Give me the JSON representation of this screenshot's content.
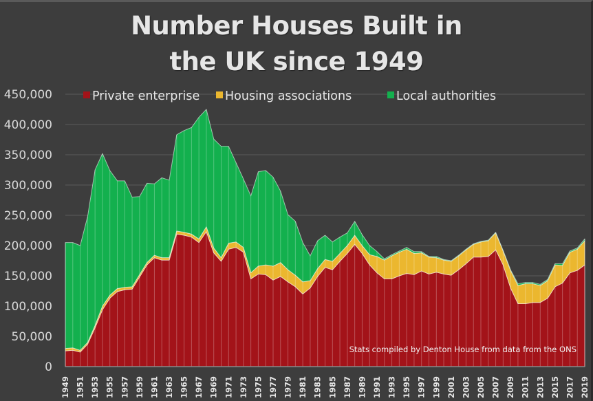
{
  "chart_data": {
    "type": "area",
    "stacked": true,
    "title": "Number Houses Built in the UK since 1949",
    "title_lines": [
      "Number Houses Built in",
      "the UK since 1949"
    ],
    "xlabel": "",
    "ylabel": "",
    "ylim": [
      0,
      450000
    ],
    "yticks": [
      0,
      50000,
      100000,
      150000,
      200000,
      250000,
      300000,
      350000,
      400000,
      450000
    ],
    "ytick_labels": [
      "0",
      "50,000",
      "100,000",
      "150,000",
      "200,000",
      "250,000",
      "300,000",
      "350,000",
      "400,000",
      "450,000"
    ],
    "grid": true,
    "legend_position": "top",
    "annotation": "Stats compiled by Denton House from data from the ONS",
    "x": [
      1949,
      1950,
      1951,
      1952,
      1953,
      1954,
      1955,
      1956,
      1957,
      1958,
      1959,
      1960,
      1961,
      1962,
      1963,
      1964,
      1965,
      1966,
      1967,
      1968,
      1969,
      1970,
      1971,
      1972,
      1973,
      1974,
      1975,
      1976,
      1977,
      1978,
      1979,
      1980,
      1981,
      1982,
      1983,
      1984,
      1985,
      1986,
      1987,
      1988,
      1989,
      1990,
      1991,
      1992,
      1993,
      1994,
      1995,
      1996,
      1997,
      1998,
      1999,
      2000,
      2001,
      2002,
      2003,
      2004,
      2005,
      2006,
      2007,
      2008,
      2009,
      2010,
      2011,
      2012,
      2013,
      2014,
      2015,
      2016,
      2017,
      2018,
      2019
    ],
    "xtick_labels": [
      "1949",
      "1951",
      "1953",
      "1955",
      "1957",
      "1959",
      "1961",
      "1963",
      "1965",
      "1967",
      "1969",
      "1971",
      "1973",
      "1975",
      "1977",
      "1979",
      "1981",
      "1983",
      "1985",
      "1987",
      "1989",
      "1991",
      "1993",
      "1995",
      "1997",
      "1999",
      "2001",
      "2003",
      "2005",
      "2007",
      "2009",
      "2011",
      "2013",
      "2015",
      "2017",
      "2019"
    ],
    "series": [
      {
        "name": "Private enterprise",
        "color": "#a31319",
        "values": [
          26000,
          27000,
          24000,
          37000,
          64000,
          94000,
          113000,
          124000,
          127000,
          128000,
          148000,
          168000,
          180000,
          176000,
          176000,
          219000,
          217000,
          214000,
          205000,
          223000,
          188000,
          174000,
          194000,
          197000,
          189000,
          145000,
          153000,
          152000,
          143000,
          149000,
          140000,
          132000,
          120000,
          130000,
          149000,
          164000,
          160000,
          174000,
          187000,
          202000,
          187000,
          168000,
          155000,
          145000,
          145000,
          150000,
          154000,
          152000,
          158000,
          153000,
          156000,
          153000,
          151000,
          160000,
          170000,
          181000,
          181000,
          182000,
          193000,
          168000,
          130000,
          104000,
          104000,
          106000,
          106000,
          113000,
          132000,
          138000,
          155000,
          159000,
          168000
        ]
      },
      {
        "name": "Housing associations",
        "color": "#ebb72f",
        "values": [
          4000,
          4000,
          3000,
          3000,
          4000,
          6000,
          5000,
          5000,
          4000,
          4000,
          4000,
          4000,
          4000,
          4000,
          4000,
          5000,
          5000,
          5000,
          6000,
          8000,
          8000,
          6000,
          10000,
          9000,
          8000,
          10000,
          13000,
          16000,
          23000,
          23000,
          20000,
          19000,
          20000,
          12000,
          13000,
          13000,
          14000,
          13000,
          13000,
          15000,
          13000,
          17000,
          27000,
          31000,
          38000,
          39000,
          40000,
          35000,
          30000,
          28000,
          24000,
          23000,
          23000,
          23000,
          23000,
          21000,
          25000,
          26000,
          28000,
          23000,
          29000,
          30000,
          33000,
          31000,
          28000,
          29000,
          36000,
          29000,
          34000,
          35000,
          40000
        ]
      },
      {
        "name": "Local authorities",
        "color": "#13b04e",
        "values": [
          175000,
          174000,
          173000,
          208000,
          257000,
          252000,
          206000,
          178000,
          176000,
          148000,
          129000,
          131000,
          118000,
          132000,
          128000,
          159000,
          168000,
          176000,
          201000,
          194000,
          180000,
          184000,
          160000,
          131000,
          113000,
          127000,
          156000,
          156000,
          147000,
          118000,
          91000,
          89000,
          65000,
          41000,
          46000,
          40000,
          32000,
          27000,
          21000,
          23000,
          18000,
          15000,
          8000,
          2000,
          2000,
          2000,
          3000,
          3000,
          2000,
          1000,
          2000,
          1000,
          1000,
          1000,
          1000,
          1000,
          1000,
          1000,
          1000,
          1000,
          1000,
          3000,
          2000,
          2000,
          2000,
          2000,
          2000,
          3000,
          2000,
          2000,
          3000
        ]
      }
    ]
  }
}
